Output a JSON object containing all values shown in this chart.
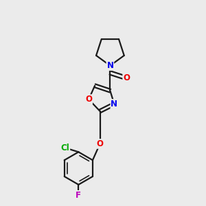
{
  "background_color": "#ebebeb",
  "bond_color": "#1a1a1a",
  "atom_colors": {
    "N": "#0000ee",
    "O": "#ee0000",
    "Cl": "#00aa00",
    "F": "#bb00bb"
  },
  "figsize": [
    3.0,
    3.0
  ],
  "dpi": 100
}
